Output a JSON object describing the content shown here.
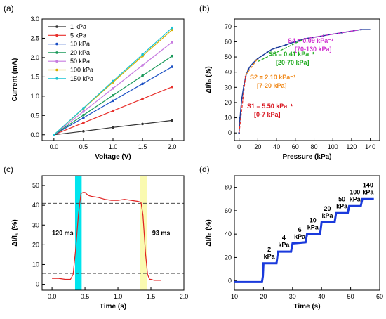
{
  "chart_data": [
    {
      "panel": "(a)",
      "type": "line",
      "xlabel": "Voltage (V)",
      "ylabel": "Current (mA)",
      "xlim": [
        -0.2,
        2.2
      ],
      "ylim": [
        -0.15,
        3.0
      ],
      "xticks": [
        "0.0",
        "0.5",
        "1.0",
        "1.5",
        "2.0"
      ],
      "yticks": [
        "0.0",
        "0.5",
        "1.0",
        "1.5",
        "2.0",
        "2.5",
        "3.0"
      ],
      "legend_position": "top-left",
      "x": [
        0,
        0.5,
        1.0,
        1.5,
        2.0
      ],
      "series": [
        {
          "name": "1 kPa",
          "color": "#333333",
          "values": [
            0,
            0.09,
            0.19,
            0.28,
            0.37
          ]
        },
        {
          "name": "5 kPa",
          "color": "#e8312d",
          "values": [
            0,
            0.31,
            0.62,
            0.93,
            1.24
          ]
        },
        {
          "name": "10 kPa",
          "color": "#1a4fc4",
          "values": [
            0,
            0.44,
            0.88,
            1.32,
            1.76
          ]
        },
        {
          "name": "20 kPa",
          "color": "#1a9a5a",
          "values": [
            0,
            0.51,
            1.02,
            1.53,
            2.04
          ]
        },
        {
          "name": "50 kPa",
          "color": "#c77be0",
          "values": [
            0,
            0.6,
            1.2,
            1.8,
            2.4
          ]
        },
        {
          "name": "100 kPa",
          "color": "#d6b000",
          "values": [
            0,
            0.68,
            1.36,
            2.04,
            2.72
          ]
        },
        {
          "name": "150 kPa",
          "color": "#19c3d3",
          "values": [
            0,
            0.69,
            1.39,
            2.08,
            2.77
          ]
        }
      ]
    },
    {
      "panel": "(b)",
      "type": "line",
      "xlabel": "Pressure (kPa)",
      "ylabel": "ΔI/I₀ (%)",
      "xlim": [
        -5,
        150
      ],
      "ylim": [
        -5,
        75
      ],
      "xticks": [
        "0",
        "20",
        "40",
        "60",
        "80",
        "100",
        "120",
        "140"
      ],
      "yticks": [
        "0",
        "10",
        "20",
        "30",
        "40",
        "50",
        "60",
        "70"
      ],
      "line_color": "#1a3a9a",
      "x": [
        0,
        0.5,
        1,
        2,
        3,
        4,
        5,
        6,
        7,
        8,
        10,
        12,
        15,
        18,
        20,
        25,
        30,
        35,
        40,
        45,
        50,
        55,
        60,
        65,
        70,
        80,
        90,
        100,
        110,
        120,
        130,
        140
      ],
      "values": [
        0,
        5,
        10,
        17,
        23,
        27,
        31,
        34,
        37,
        39,
        42,
        44,
        46,
        48,
        49,
        51,
        53,
        55,
        56,
        57,
        58,
        59,
        60,
        61,
        62,
        63,
        64,
        65,
        66,
        67,
        68,
        68
      ],
      "fits": [
        {
          "color": "#e8312d",
          "x": [
            0,
            7
          ],
          "y": [
            0,
            38
          ]
        },
        {
          "color": "#f08a1c",
          "x": [
            7,
            20
          ],
          "y": [
            38,
            49
          ]
        },
        {
          "color": "#22b022",
          "x": [
            20,
            70
          ],
          "y": [
            47,
            62
          ]
        },
        {
          "color": "#d030d0",
          "x": [
            70,
            130
          ],
          "y": [
            62,
            68
          ]
        }
      ],
      "annotations": [
        {
          "line1": "S1 =  5.50 kPa⁻¹",
          "line2": "[0-7 kPa]",
          "color": "#d8141e"
        },
        {
          "line1": "S2 =  2.10 kPa⁻¹",
          "line2": "[7-20 kPa]",
          "color": "#f08a1c"
        },
        {
          "line1": "S3 =  0.41 kPa⁻¹",
          "line2": "[20-70 kPa]",
          "color": "#22aa22"
        },
        {
          "line1": "S4 =  0.09 kPa⁻¹",
          "line2": "[70-130 kPa]",
          "color": "#d030d0"
        }
      ]
    },
    {
      "panel": "(c)",
      "type": "line",
      "xlabel": "Time (s)",
      "ylabel": "ΔI/I₀ (%)",
      "xlim": [
        -0.15,
        2.0
      ],
      "ylim": [
        -3,
        55
      ],
      "xticks": [
        "0.0",
        "0.5",
        "1.0",
        "1.5",
        "2.0"
      ],
      "yticks": [
        "0",
        "10",
        "20",
        "30",
        "40",
        "50"
      ],
      "line_color": "#e02020",
      "x": [
        0.0,
        0.1,
        0.2,
        0.28,
        0.32,
        0.36,
        0.4,
        0.44,
        0.47,
        0.5,
        0.55,
        0.6,
        0.7,
        0.8,
        0.9,
        1.0,
        1.1,
        1.2,
        1.3,
        1.35,
        1.38,
        1.4,
        1.42,
        1.45,
        1.48,
        1.5,
        1.55,
        1.6,
        1.65
      ],
      "values": [
        3,
        3,
        2.5,
        2.5,
        5,
        18,
        35,
        46,
        46.5,
        46.5,
        45,
        44.5,
        44,
        43,
        42.5,
        42.5,
        43,
        42.5,
        42,
        41.5,
        35,
        25,
        15,
        5,
        2.5,
        2.5,
        2,
        2,
        2
      ],
      "dashed_levels": [
        41,
        5.5
      ],
      "bands": [
        {
          "x0": 0.35,
          "x1": 0.45,
          "color": "#00e5ee"
        },
        {
          "x0": 1.34,
          "x1": 1.44,
          "color": "#fafab0"
        }
      ],
      "annotations": [
        {
          "text": "120 ms",
          "x": 0.0,
          "y": 25
        },
        {
          "text": "93 ms",
          "x": 1.52,
          "y": 25
        }
      ]
    },
    {
      "panel": "(d)",
      "type": "line",
      "xlabel": "Time (s)",
      "ylabel": "ΔI/I₀ (%)",
      "xlim": [
        10,
        60
      ],
      "ylim": [
        -8,
        90
      ],
      "xticks": [
        "10",
        "20",
        "30",
        "40",
        "50",
        "60"
      ],
      "yticks": [
        "0",
        "20",
        "40",
        "60",
        "80"
      ],
      "line_color": "#1a3adc",
      "x": [
        10,
        19.5,
        19.8,
        20,
        24.5,
        25,
        29.5,
        30,
        34.5,
        35,
        39.5,
        40,
        44.5,
        45,
        49,
        49.5,
        53.5,
        54,
        58
      ],
      "values": [
        -1,
        -1,
        4,
        15,
        15,
        25,
        25,
        32,
        33,
        40,
        40,
        50,
        50,
        58,
        58,
        64,
        64,
        70,
        70
      ],
      "step_labels": [
        {
          "value": "2",
          "unit": "kPa",
          "x": 22,
          "y": 19
        },
        {
          "value": "4",
          "unit": "kPa",
          "x": 27,
          "y": 29
        },
        {
          "value": "6",
          "unit": "kPa",
          "x": 32.5,
          "y": 36
        },
        {
          "value": "10",
          "unit": "kPa",
          "x": 37,
          "y": 44
        },
        {
          "value": "20",
          "unit": "kPa",
          "x": 42,
          "y": 54
        },
        {
          "value": "50",
          "unit": "kPa",
          "x": 47,
          "y": 62
        },
        {
          "value": "100",
          "unit": "kPa",
          "x": 51.5,
          "y": 68
        },
        {
          "value": "140",
          "unit": "kPa",
          "x": 56,
          "y": 74
        }
      ]
    }
  ]
}
